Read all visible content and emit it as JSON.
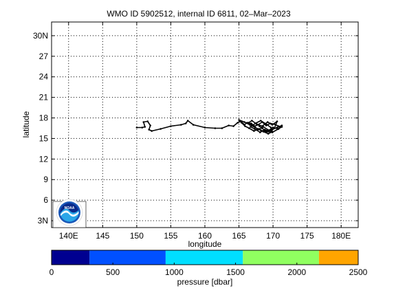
{
  "chart_data": [
    {
      "type": "line",
      "title": "WMO ID 5902512, internal ID 6811, 02–Mar–2023",
      "xlabel": "longitude",
      "ylabel": "latitude",
      "xlim": [
        137.5,
        182.5
      ],
      "ylim": [
        2.0,
        32.0
      ],
      "x_ticks": [
        140,
        145,
        150,
        155,
        160,
        165,
        170,
        175,
        180
      ],
      "x_tick_labels": [
        "140E",
        "145",
        "150",
        "155",
        "160",
        "165",
        "170",
        "175",
        "180E"
      ],
      "y_ticks": [
        3,
        6,
        9,
        12,
        15,
        18,
        21,
        24,
        27,
        30
      ],
      "y_tick_labels": [
        "3N",
        "6",
        "9",
        "12",
        "15",
        "18",
        "21",
        "24",
        "27",
        "30N"
      ],
      "grid": true,
      "series": [
        {
          "color": "#000000",
          "x": [
            150.0,
            150.8,
            151.2,
            151.0,
            151.6,
            152.0,
            151.8,
            152.2,
            153.5,
            155.0,
            156.5,
            157.2,
            157.5,
            158.3,
            160.0,
            161.5,
            162.5,
            163.5,
            164.2,
            164.8,
            165.3,
            165.8,
            166.2,
            166.8,
            167.3,
            167.8,
            168.4,
            169.0,
            169.6,
            170.2,
            170.8,
            171.3,
            170.8,
            170.0,
            169.4,
            168.6,
            167.8,
            167.0,
            166.4,
            166.9,
            167.6,
            168.4,
            169.2,
            169.9,
            170.6,
            170.2,
            169.6,
            168.8,
            168.1,
            167.3,
            166.7,
            167.4,
            168.2,
            169.0,
            169.7,
            169.9,
            169.3,
            168.6,
            167.9,
            167.2,
            166.5,
            165.9,
            165.4,
            165.0,
            165.8,
            166.6,
            167.4,
            168.2,
            169.0,
            169.8,
            170.6,
            171.3,
            170.8,
            169.9,
            169.1,
            168.4,
            168.0
          ],
          "y": [
            16.6,
            16.6,
            16.7,
            17.4,
            17.5,
            16.9,
            16.3,
            16.1,
            16.4,
            16.8,
            17.0,
            17.2,
            17.6,
            17.0,
            16.6,
            16.5,
            16.5,
            16.9,
            16.8,
            17.3,
            17.5,
            17.0,
            17.3,
            17.2,
            16.8,
            17.0,
            17.4,
            16.9,
            17.2,
            17.1,
            16.8,
            16.7,
            16.4,
            16.6,
            16.2,
            16.7,
            16.3,
            16.9,
            17.3,
            17.6,
            17.1,
            16.8,
            17.4,
            17.0,
            17.5,
            16.5,
            16.0,
            16.3,
            15.9,
            16.4,
            16.7,
            17.2,
            17.6,
            17.1,
            16.6,
            16.0,
            15.7,
            16.0,
            16.4,
            16.1,
            16.5,
            16.8,
            17.3,
            17.7,
            17.4,
            17.0,
            16.6,
            16.2,
            16.0,
            16.3,
            16.6,
            16.9,
            16.4,
            15.9,
            16.0,
            16.5,
            16.8
          ]
        }
      ]
    },
    {
      "type": "heatmap",
      "title": "",
      "xlabel": "pressure [dbar]",
      "xlim": [
        0,
        2500
      ],
      "x_ticks": [
        0,
        500,
        1000,
        1500,
        2000,
        2500
      ],
      "x_tick_labels": [
        "0",
        "500",
        "1000",
        "1500",
        "2000",
        "2500"
      ],
      "bands": [
        {
          "from": 0,
          "to": 310,
          "color": "#000090"
        },
        {
          "from": 310,
          "to": 930,
          "color": "#0050ff"
        },
        {
          "from": 930,
          "to": 1560,
          "color": "#00dfff"
        },
        {
          "from": 1560,
          "to": 2180,
          "color": "#90ff60"
        },
        {
          "from": 2180,
          "to": 2500,
          "color": "#ffa500"
        }
      ]
    }
  ],
  "logo": {
    "icon": "noaa-logo-icon",
    "text": "NOAA",
    "colors": {
      "outer": "#ffffff",
      "ring": "#1a57b8",
      "sky": "#0a2a8a",
      "water": "#2aa6e8"
    }
  }
}
